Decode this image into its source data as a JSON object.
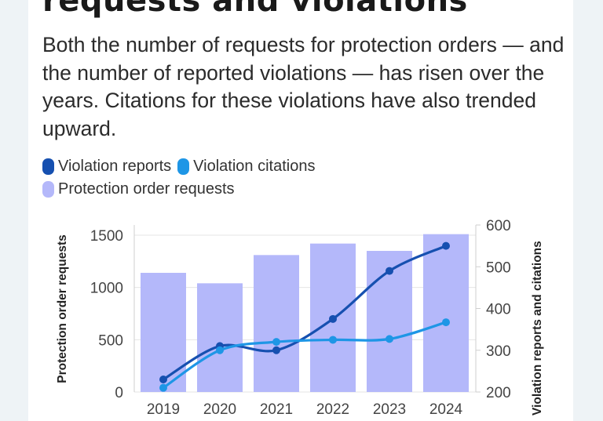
{
  "header": {
    "title": "requests and violations",
    "subtitle": "Both the number of requests for protection orders — and the number of reported violations — has risen over the years. Citations for these violations have also trended upward."
  },
  "legend": [
    {
      "label": "Violation reports",
      "color": "#1650b0"
    },
    {
      "label": "Violation citations",
      "color": "#1e96e6"
    },
    {
      "label": "Protection order requests",
      "color": "#b4b8fa"
    }
  ],
  "chart_data": {
    "type": "bar",
    "categories": [
      "2019",
      "2020",
      "2021",
      "2022",
      "2023",
      "2024"
    ],
    "series": [
      {
        "name": "Protection order requests",
        "type": "bar",
        "axis": "left",
        "color": "#b4b8fa",
        "values": [
          1140,
          1040,
          1310,
          1420,
          1350,
          1510
        ]
      },
      {
        "name": "Violation reports",
        "type": "line",
        "axis": "right",
        "color": "#1650b0",
        "values": [
          230,
          310,
          300,
          375,
          490,
          550
        ]
      },
      {
        "name": "Violation citations",
        "type": "line",
        "axis": "right",
        "color": "#1e96e6",
        "values": [
          210,
          300,
          320,
          325,
          327,
          367
        ]
      }
    ],
    "ylabel": "Protection order requests",
    "ylabel_right": "Violation reports and citations",
    "ylim": [
      0,
      1500
    ],
    "ylim_right": [
      200,
      600
    ],
    "yticks": [
      "0",
      "500",
      "1000",
      "1500"
    ],
    "yticks_right": [
      "200",
      "300",
      "400",
      "500",
      "600"
    ],
    "ytick_values": [
      0,
      500,
      1000,
      1500
    ],
    "ytick_values_right": [
      200,
      300,
      400,
      500,
      600
    ]
  }
}
